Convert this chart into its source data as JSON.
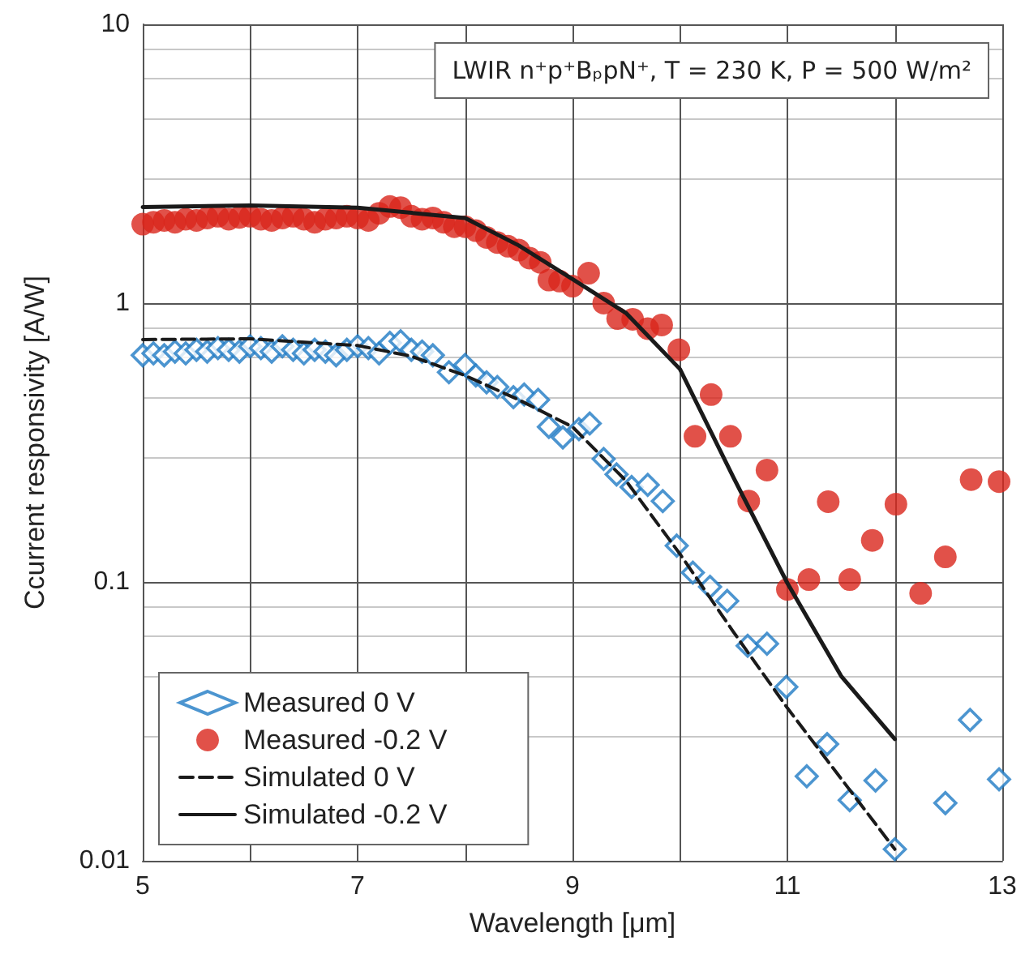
{
  "chart_data": {
    "type": "scatter",
    "xlabel": "Wavelength [μm]",
    "ylabel": "Ccurrent responsivity [A/W]",
    "annotations": [
      "LWIR n⁺p⁺BₚpN⁺, T = 230 K, P = 500 W/m²"
    ],
    "log": "y",
    "grid": true,
    "legend": "bottom left",
    "xlim": [
      5,
      13
    ],
    "xticks": [
      5,
      {
        "value": 6,
        "label": null
      },
      7,
      {
        "value": 8,
        "label": null
      },
      9,
      {
        "value": 10,
        "label": null
      },
      11,
      {
        "value": 12,
        "label": null
      },
      13
    ],
    "ylim": [
      0.01,
      10
    ],
    "yticks": [
      0.01,
      0.1,
      1,
      10
    ],
    "series": [
      {
        "name": "Measured 0 V",
        "marker": "diamond",
        "color": "#1f7ac4",
        "x": [
          5.0,
          5.1,
          5.2,
          5.3,
          5.4,
          5.5,
          5.6,
          5.7,
          5.8,
          5.9,
          6.0,
          6.1,
          6.2,
          6.3,
          6.4,
          6.5,
          6.6,
          6.7,
          6.8,
          6.9,
          7.0,
          7.1,
          7.2,
          7.3,
          7.4,
          7.5,
          7.6,
          7.7,
          7.85,
          8.0,
          8.1,
          8.2,
          8.3,
          8.45,
          8.55,
          8.68,
          8.78,
          8.91,
          9.06,
          9.16,
          9.29,
          9.41,
          9.55,
          9.7,
          9.84,
          9.97,
          10.12,
          10.28,
          10.44,
          10.63,
          10.81,
          10.99,
          11.18,
          11.37,
          11.58,
          11.82,
          12.0,
          12.47,
          12.7,
          12.97
        ],
        "values": [
          0.65,
          0.66,
          0.65,
          0.67,
          0.66,
          0.68,
          0.67,
          0.69,
          0.68,
          0.67,
          0.7,
          0.69,
          0.67,
          0.7,
          0.68,
          0.66,
          0.68,
          0.67,
          0.65,
          0.68,
          0.7,
          0.69,
          0.66,
          0.72,
          0.73,
          0.68,
          0.67,
          0.65,
          0.565,
          0.6,
          0.55,
          0.52,
          0.5,
          0.46,
          0.47,
          0.45,
          0.36,
          0.33,
          0.353,
          0.37,
          0.276,
          0.243,
          0.219,
          0.223,
          0.195,
          0.135,
          0.108,
          0.096,
          0.0855,
          0.059,
          0.06,
          0.042,
          0.0201,
          0.0262,
          0.0165,
          0.0194,
          0.011,
          0.0161,
          0.032,
          0.0196
        ]
      },
      {
        "name": "Measured -0.2 V",
        "marker": "circle",
        "color": "#d9261c",
        "x": [
          5.0,
          5.1,
          5.2,
          5.3,
          5.4,
          5.5,
          5.6,
          5.7,
          5.8,
          5.9,
          6.0,
          6.1,
          6.2,
          6.3,
          6.4,
          6.5,
          6.6,
          6.7,
          6.8,
          6.9,
          7.0,
          7.1,
          7.2,
          7.3,
          7.4,
          7.5,
          7.6,
          7.7,
          7.8,
          7.9,
          8.0,
          8.1,
          8.2,
          8.3,
          8.4,
          8.5,
          8.6,
          8.7,
          8.78,
          8.88,
          9.0,
          9.15,
          9.29,
          9.42,
          9.56,
          9.7,
          9.83,
          9.99,
          10.14,
          10.29,
          10.47,
          10.64,
          10.81,
          11.0,
          11.2,
          11.38,
          11.58,
          11.79,
          12.01,
          12.24,
          12.47,
          12.71,
          12.97
        ],
        "values": [
          1.92,
          1.95,
          1.98,
          1.95,
          2.0,
          1.98,
          2.02,
          2.05,
          2.0,
          2.03,
          2.05,
          2.0,
          1.98,
          2.02,
          2.05,
          2.0,
          1.95,
          2.0,
          2.02,
          2.05,
          2.02,
          1.98,
          2.1,
          2.22,
          2.2,
          2.05,
          2.0,
          2.02,
          1.95,
          1.88,
          1.88,
          1.82,
          1.72,
          1.65,
          1.6,
          1.55,
          1.45,
          1.4,
          1.21,
          1.2,
          1.15,
          1.28,
          1.0,
          0.88,
          0.875,
          0.81,
          0.835,
          0.68,
          0.333,
          0.47,
          0.333,
          0.195,
          0.252,
          0.094,
          0.102,
          0.194,
          0.102,
          0.141,
          0.19,
          0.091,
          0.123,
          0.233,
          0.229
        ]
      },
      {
        "name": "Simulated 0 V",
        "type": "line",
        "marker": "none",
        "line_style": "dashed",
        "color": "#1a1a1a",
        "x": [
          5,
          6,
          7,
          7.5,
          8,
          8.5,
          9,
          9.5,
          10,
          10.5,
          11,
          11.5,
          12
        ],
        "values": [
          0.74,
          0.745,
          0.705,
          0.645,
          0.55,
          0.45,
          0.36,
          0.23,
          0.126,
          0.066,
          0.0353,
          0.0197,
          0.011
        ]
      },
      {
        "name": "Simulated -0.2 V",
        "type": "line",
        "marker": "none",
        "line_style": "solid",
        "color": "#1a1a1a",
        "x": [
          5,
          6,
          7,
          8,
          8.5,
          9,
          9.5,
          10,
          10.5,
          11,
          11.5,
          12
        ],
        "values": [
          2.21,
          2.24,
          2.2,
          2.02,
          1.61,
          1.22,
          0.92,
          0.58,
          0.236,
          0.099,
          0.046,
          0.0273
        ]
      }
    ]
  }
}
